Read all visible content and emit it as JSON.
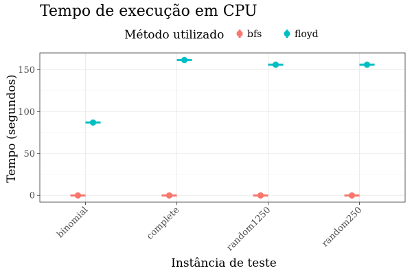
{
  "chart_data": {
    "type": "scatter",
    "title": "Tempo de execução em CPU",
    "xlabel": "Instância de teste",
    "ylabel": "Tempo (segundos)",
    "categories": [
      "binomial",
      "complete",
      "random1250",
      "random250"
    ],
    "ylim": [
      -8,
      170
    ],
    "yticks": [
      0,
      50,
      100,
      150
    ],
    "grid": true,
    "legend": {
      "title": "Método utilizado",
      "position": "top"
    },
    "series": [
      {
        "name": "bfs",
        "color": "#F8766D",
        "values": [
          0,
          0,
          0,
          0
        ]
      },
      {
        "name": "floyd",
        "color": "#00BFC4",
        "values": [
          87,
          161.5,
          156,
          156
        ]
      }
    ]
  }
}
